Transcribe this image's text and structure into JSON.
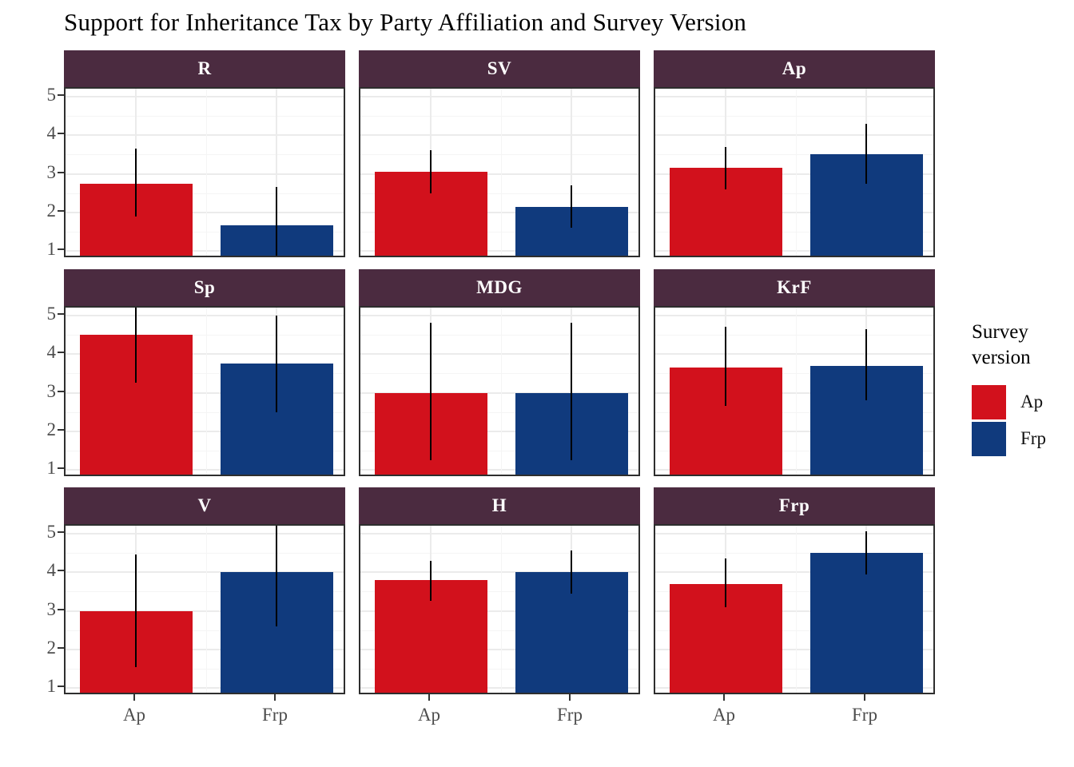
{
  "title": "Support for Inheritance Tax by Party Affiliation and Survey Version",
  "legend": {
    "title": "Survey version",
    "entries": [
      {
        "label": "Ap",
        "color": "#d2111c"
      },
      {
        "label": "Frp",
        "color": "#103a7d"
      }
    ]
  },
  "colors": {
    "bar_ap": "#d2111c",
    "bar_frp": "#103a7d",
    "strip_bg": "#4b2b40",
    "strip_text": "#ffffff",
    "panel_border": "#2e2e2e",
    "grid_major": "#ebebeb",
    "grid_minor": "#f5f5f5",
    "axis_text": "#4d4d4d",
    "error_bar": "#000000"
  },
  "chart_data": {
    "type": "bar",
    "title": "Support for Inheritance Tax by Party Affiliation and Survey Version",
    "facet_variable": "party",
    "x_variable": "survey version",
    "x_categories": [
      "Ap",
      "Frp"
    ],
    "ylabel": "",
    "xlabel": "",
    "ylim": [
      0.8,
      5.2
    ],
    "yticks": [
      1,
      2,
      3,
      4,
      5
    ],
    "yticks_minor": [
      1.5,
      2.5,
      3.5,
      4.5
    ],
    "grid": true,
    "legend_position": "right",
    "error_bars": true,
    "facets": [
      {
        "label": "R",
        "bars": [
          {
            "x": "Ap",
            "mean": 2.75,
            "lo": 1.9,
            "hi": 3.65
          },
          {
            "x": "Frp",
            "mean": 1.67,
            "lo": 0.8,
            "hi": 2.65
          }
        ]
      },
      {
        "label": "SV",
        "bars": [
          {
            "x": "Ap",
            "mean": 3.05,
            "lo": 2.5,
            "hi": 3.6
          },
          {
            "x": "Frp",
            "mean": 2.15,
            "lo": 1.6,
            "hi": 2.7
          }
        ]
      },
      {
        "label": "Ap",
        "bars": [
          {
            "x": "Ap",
            "mean": 3.15,
            "lo": 2.6,
            "hi": 3.7
          },
          {
            "x": "Frp",
            "mean": 3.5,
            "lo": 2.75,
            "hi": 4.3
          }
        ]
      },
      {
        "label": "Sp",
        "bars": [
          {
            "x": "Ap",
            "mean": 4.5,
            "lo": 3.25,
            "hi": 5.2
          },
          {
            "x": "Frp",
            "mean": 3.75,
            "lo": 2.5,
            "hi": 5.0
          }
        ]
      },
      {
        "label": "MDG",
        "bars": [
          {
            "x": "Ap",
            "mean": 3.0,
            "lo": 1.25,
            "hi": 4.8
          },
          {
            "x": "Frp",
            "mean": 3.0,
            "lo": 1.25,
            "hi": 4.8
          }
        ]
      },
      {
        "label": "KrF",
        "bars": [
          {
            "x": "Ap",
            "mean": 3.65,
            "lo": 2.65,
            "hi": 4.7
          },
          {
            "x": "Frp",
            "mean": 3.7,
            "lo": 2.8,
            "hi": 4.65
          }
        ]
      },
      {
        "label": "V",
        "bars": [
          {
            "x": "Ap",
            "mean": 3.0,
            "lo": 1.55,
            "hi": 4.45
          },
          {
            "x": "Frp",
            "mean": 4.0,
            "lo": 2.6,
            "hi": 5.2
          }
        ]
      },
      {
        "label": "H",
        "bars": [
          {
            "x": "Ap",
            "mean": 3.8,
            "lo": 3.25,
            "hi": 4.3
          },
          {
            "x": "Frp",
            "mean": 4.0,
            "lo": 3.45,
            "hi": 4.55
          }
        ]
      },
      {
        "label": "Frp",
        "bars": [
          {
            "x": "Ap",
            "mean": 3.7,
            "lo": 3.1,
            "hi": 4.35
          },
          {
            "x": "Frp",
            "mean": 4.5,
            "lo": 3.95,
            "hi": 5.05
          }
        ]
      }
    ]
  }
}
